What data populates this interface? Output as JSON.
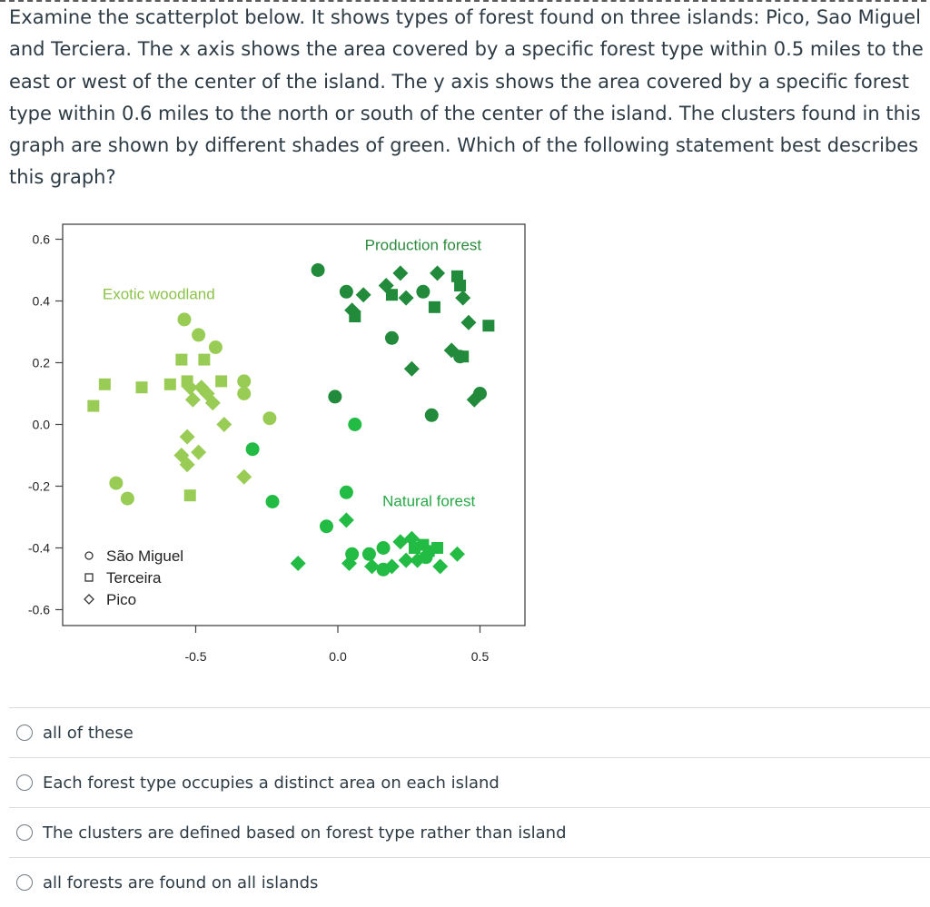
{
  "question": {
    "text": "Examine the scatterplot below. It shows types of forest found on three islands: Pico, Sao Miguel and Terciera. The x axis shows the area covered by a specific forest type within 0.5 miles to the east or west of the center of the island. The y axis shows the area covered by a specific forest type within 0.6 miles to the north or south of the center of the island. The clusters found in this graph are shown by different shades of green. Which of the following statement best describes this graph?"
  },
  "chart_data": {
    "type": "scatter",
    "xlim": [
      -1.0,
      0.65
    ],
    "ylim": [
      -0.65,
      0.66
    ],
    "x_ticks": [
      -0.5,
      0.0,
      0.5
    ],
    "x_tick_labels": [
      "-0.5",
      "0.0",
      "0.5"
    ],
    "y_ticks": [
      0.6,
      0.4,
      0.2,
      0.0,
      -0.2,
      -0.4,
      -0.6
    ],
    "y_tick_labels": [
      "0.6",
      "0.4",
      "0.2",
      "0.0",
      "-0.2",
      "-0.4",
      "-0.6"
    ],
    "grid": false,
    "legend_position": "bottom-left",
    "annotations": [
      {
        "text": "Production forest",
        "x": 0.3,
        "y": 0.58,
        "color": "#2e8b3e"
      },
      {
        "text": "Exotic woodland",
        "x": -0.63,
        "y": 0.42,
        "color": "#8bc34a"
      },
      {
        "text": "Natural forest",
        "x": 0.32,
        "y": -0.25,
        "color": "#27a845"
      }
    ],
    "legend": [
      {
        "label": "São Miguel",
        "marker": "circle"
      },
      {
        "label": "Terceira",
        "marker": "square"
      },
      {
        "label": "Pico",
        "marker": "diamond"
      }
    ],
    "clusters": [
      {
        "color": "#228b3b",
        "points": [
          {
            "x": -0.07,
            "y": 0.5,
            "m": "circle"
          },
          {
            "x": 0.03,
            "y": 0.43,
            "m": "circle"
          },
          {
            "x": 0.09,
            "y": 0.42,
            "m": "diamond"
          },
          {
            "x": 0.17,
            "y": 0.45,
            "m": "diamond"
          },
          {
            "x": 0.22,
            "y": 0.49,
            "m": "diamond"
          },
          {
            "x": 0.19,
            "y": 0.42,
            "m": "square"
          },
          {
            "x": 0.24,
            "y": 0.41,
            "m": "diamond"
          },
          {
            "x": 0.3,
            "y": 0.43,
            "m": "circle"
          },
          {
            "x": 0.35,
            "y": 0.49,
            "m": "diamond"
          },
          {
            "x": 0.42,
            "y": 0.48,
            "m": "square"
          },
          {
            "x": 0.43,
            "y": 0.45,
            "m": "square"
          },
          {
            "x": 0.44,
            "y": 0.41,
            "m": "diamond"
          },
          {
            "x": 0.34,
            "y": 0.38,
            "m": "square"
          },
          {
            "x": 0.05,
            "y": 0.37,
            "m": "diamond"
          },
          {
            "x": 0.06,
            "y": 0.35,
            "m": "square"
          },
          {
            "x": 0.46,
            "y": 0.33,
            "m": "diamond"
          },
          {
            "x": 0.53,
            "y": 0.32,
            "m": "square"
          },
          {
            "x": 0.19,
            "y": 0.28,
            "m": "circle"
          },
          {
            "x": 0.4,
            "y": 0.24,
            "m": "diamond"
          },
          {
            "x": 0.43,
            "y": 0.22,
            "m": "circle"
          },
          {
            "x": 0.44,
            "y": 0.22,
            "m": "square"
          },
          {
            "x": 0.26,
            "y": 0.18,
            "m": "diamond"
          },
          {
            "x": 0.5,
            "y": 0.1,
            "m": "circle"
          },
          {
            "x": 0.48,
            "y": 0.08,
            "m": "diamond"
          },
          {
            "x": -0.01,
            "y": 0.09,
            "m": "circle"
          },
          {
            "x": 0.33,
            "y": 0.03,
            "m": "circle"
          }
        ]
      },
      {
        "color": "#99cc55",
        "points": [
          {
            "x": -0.54,
            "y": 0.34,
            "m": "circle"
          },
          {
            "x": -0.49,
            "y": 0.29,
            "m": "circle"
          },
          {
            "x": -0.43,
            "y": 0.25,
            "m": "circle"
          },
          {
            "x": -0.55,
            "y": 0.21,
            "m": "square"
          },
          {
            "x": -0.47,
            "y": 0.21,
            "m": "square"
          },
          {
            "x": -0.82,
            "y": 0.13,
            "m": "square"
          },
          {
            "x": -0.69,
            "y": 0.12,
            "m": "square"
          },
          {
            "x": -0.59,
            "y": 0.13,
            "m": "square"
          },
          {
            "x": -0.53,
            "y": 0.14,
            "m": "square"
          },
          {
            "x": -0.41,
            "y": 0.14,
            "m": "square"
          },
          {
            "x": -0.52,
            "y": 0.12,
            "m": "diamond"
          },
          {
            "x": -0.48,
            "y": 0.12,
            "m": "diamond"
          },
          {
            "x": -0.46,
            "y": 0.1,
            "m": "diamond"
          },
          {
            "x": -0.51,
            "y": 0.08,
            "m": "diamond"
          },
          {
            "x": -0.44,
            "y": 0.07,
            "m": "diamond"
          },
          {
            "x": -0.33,
            "y": 0.14,
            "m": "circle"
          },
          {
            "x": -0.33,
            "y": 0.1,
            "m": "circle"
          },
          {
            "x": -0.24,
            "y": 0.02,
            "m": "circle"
          },
          {
            "x": -0.86,
            "y": 0.06,
            "m": "square"
          },
          {
            "x": -0.53,
            "y": -0.04,
            "m": "diamond"
          },
          {
            "x": -0.4,
            "y": 0.0,
            "m": "diamond"
          },
          {
            "x": -0.55,
            "y": -0.1,
            "m": "diamond"
          },
          {
            "x": -0.53,
            "y": -0.13,
            "m": "diamond"
          },
          {
            "x": -0.49,
            "y": -0.09,
            "m": "diamond"
          },
          {
            "x": -0.33,
            "y": -0.17,
            "m": "diamond"
          },
          {
            "x": -0.78,
            "y": -0.19,
            "m": "circle"
          },
          {
            "x": -0.74,
            "y": -0.24,
            "m": "circle"
          },
          {
            "x": -0.52,
            "y": -0.23,
            "m": "square"
          }
        ]
      },
      {
        "color": "#22bb44",
        "points": [
          {
            "x": 0.06,
            "y": 0.0,
            "m": "circle"
          },
          {
            "x": -0.3,
            "y": -0.08,
            "m": "circle"
          },
          {
            "x": -0.23,
            "y": -0.25,
            "m": "circle"
          },
          {
            "x": 0.03,
            "y": -0.22,
            "m": "circle"
          },
          {
            "x": 0.03,
            "y": -0.31,
            "m": "diamond"
          },
          {
            "x": -0.04,
            "y": -0.33,
            "m": "circle"
          },
          {
            "x": -0.14,
            "y": -0.45,
            "m": "diamond"
          },
          {
            "x": 0.05,
            "y": -0.42,
            "m": "circle"
          },
          {
            "x": 0.11,
            "y": -0.42,
            "m": "circle"
          },
          {
            "x": 0.16,
            "y": -0.4,
            "m": "circle"
          },
          {
            "x": 0.22,
            "y": -0.38,
            "m": "diamond"
          },
          {
            "x": 0.26,
            "y": -0.37,
            "m": "diamond"
          },
          {
            "x": 0.27,
            "y": -0.4,
            "m": "square"
          },
          {
            "x": 0.3,
            "y": -0.39,
            "m": "square"
          },
          {
            "x": 0.32,
            "y": -0.41,
            "m": "square"
          },
          {
            "x": 0.35,
            "y": -0.4,
            "m": "square"
          },
          {
            "x": 0.42,
            "y": -0.42,
            "m": "diamond"
          },
          {
            "x": 0.04,
            "y": -0.45,
            "m": "diamond"
          },
          {
            "x": 0.12,
            "y": -0.46,
            "m": "diamond"
          },
          {
            "x": 0.16,
            "y": -0.47,
            "m": "circle"
          },
          {
            "x": 0.19,
            "y": -0.46,
            "m": "diamond"
          },
          {
            "x": 0.24,
            "y": -0.44,
            "m": "diamond"
          },
          {
            "x": 0.28,
            "y": -0.44,
            "m": "diamond"
          },
          {
            "x": 0.36,
            "y": -0.46,
            "m": "diamond"
          },
          {
            "x": 0.31,
            "y": -0.43,
            "m": "circle"
          }
        ]
      }
    ]
  },
  "answers": [
    {
      "label": "all of these"
    },
    {
      "label": "Each forest type occupies a distinct area on each island"
    },
    {
      "label": "The clusters are defined based on forest type rather than island"
    },
    {
      "label": "all forests are found on all islands"
    }
  ]
}
